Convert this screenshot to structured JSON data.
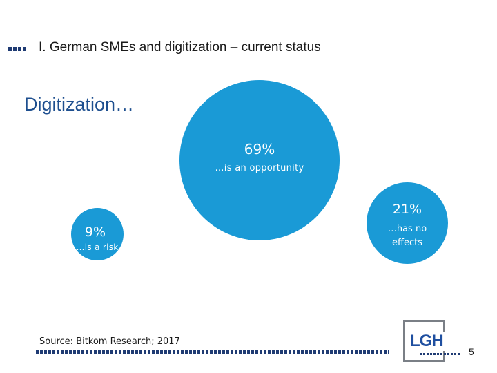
{
  "slide": {
    "section_title": "I. German SMEs and digitization – current status",
    "subtitle": "Digitization…",
    "source": "Source: Bitkom Research; 2017",
    "page_number": "5",
    "logo_text": "LGH"
  },
  "bubbles": [
    {
      "percent": "69%",
      "label": "…is an opportunity",
      "value": 69,
      "color": "#1a9ad6"
    },
    {
      "percent": "21%",
      "label": "…has no effects",
      "value": 21,
      "color": "#1a9ad6"
    },
    {
      "percent": "9%",
      "label": "…is a risk",
      "value": 9,
      "color": "#1a9ad6"
    }
  ],
  "colors": {
    "bubble": "#1a9ad6",
    "navy": "#1f3b73",
    "subtitle": "#1e4f8f"
  }
}
